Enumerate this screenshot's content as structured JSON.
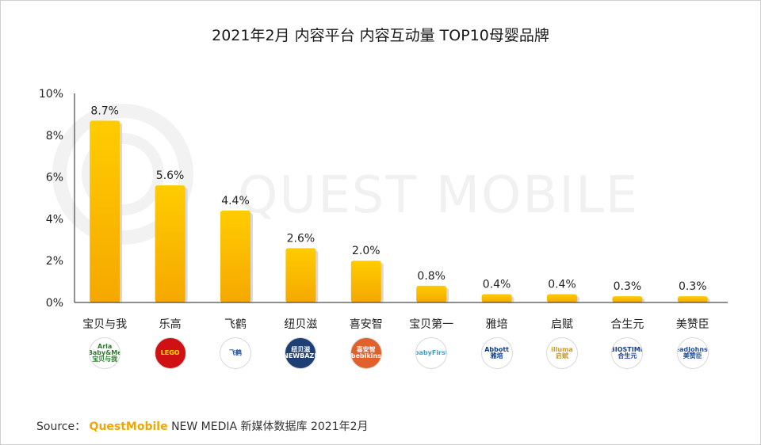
{
  "title": "2021年2月 内容平台  内容互动量 TOP10母婴品牌",
  "watermark": "QUEST MOBILE",
  "source": {
    "prefix": "Source：",
    "brand": "QuestMobile",
    "rest": "NEW MEDIA 新媒体数据库 2021年2月"
  },
  "colors": {
    "bar_top": "#ffcc00",
    "bar_bottom": "#f5a800",
    "axis": "#222222",
    "brand": "#f0a800"
  },
  "chart_data": {
    "type": "bar",
    "title": "2021年2月 内容平台  内容互动量 TOP10母婴品牌",
    "xlabel": "",
    "ylabel": "",
    "ylim": [
      0,
      10
    ],
    "yticks": [
      0,
      2,
      4,
      6,
      8,
      10
    ],
    "ytick_labels": [
      "0%",
      "2%",
      "4%",
      "6%",
      "8%",
      "10%"
    ],
    "categories": [
      "宝贝与我",
      "乐高",
      "飞鹤",
      "纽贝滋",
      "喜安智",
      "宝贝第一",
      "雅培",
      "启赋",
      "合生元",
      "美赞臣"
    ],
    "values": [
      8.7,
      5.6,
      4.4,
      2.6,
      2.0,
      0.8,
      0.4,
      0.4,
      0.3,
      0.3
    ],
    "value_labels": [
      "8.7%",
      "5.6%",
      "4.4%",
      "2.6%",
      "2.0%",
      "0.8%",
      "0.4%",
      "0.4%",
      "0.3%",
      "0.3%"
    ],
    "grid": false
  },
  "logos": [
    {
      "name": "arla-babyme-logo",
      "text": "Arla Baby&Me 宝贝与我",
      "color": "#2d7a2d",
      "bg": "#ffffff"
    },
    {
      "name": "lego-logo",
      "text": "LEGO",
      "color": "#ffe600",
      "bg": "#d01012"
    },
    {
      "name": "feihe-logo",
      "text": "飞鹤",
      "color": "#1b4fa0",
      "bg": "#ffffff"
    },
    {
      "name": "newbaze-logo",
      "text": "纽贝滋 NEWBAZE",
      "color": "#ffffff",
      "bg": "#1d3f73"
    },
    {
      "name": "babikins-logo",
      "text": "喜安智 bebikins",
      "color": "#ffffff",
      "bg": "#e0622a"
    },
    {
      "name": "babyfirst-logo",
      "text": "babyFirst",
      "color": "#3aa0c8",
      "bg": "#ffffff"
    },
    {
      "name": "abbott-logo",
      "text": "Abbott 雅培",
      "color": "#0a3c8c",
      "bg": "#ffffff"
    },
    {
      "name": "illuma-logo",
      "text": "illuma 启赋",
      "color": "#c89b2e",
      "bg": "#ffffff"
    },
    {
      "name": "biostime-logo",
      "text": "BIOSTIME 合生元",
      "color": "#1d3f8c",
      "bg": "#ffffff"
    },
    {
      "name": "meadjohnson-logo",
      "text": "MeadJohnson 美赞臣",
      "color": "#1d4fa0",
      "bg": "#ffffff"
    }
  ]
}
